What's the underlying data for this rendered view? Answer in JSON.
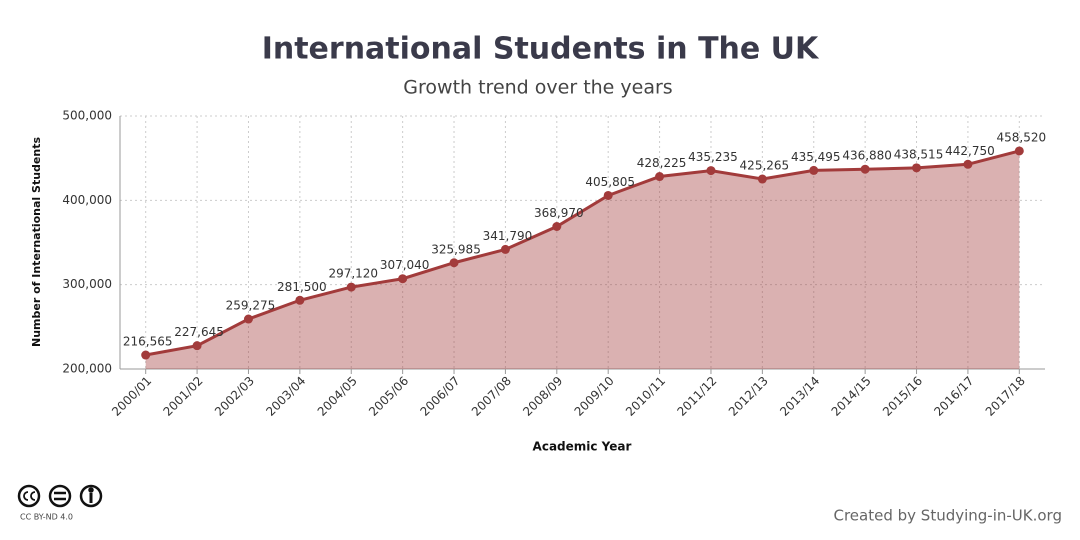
{
  "chart_data": {
    "type": "area-line",
    "title": "International Students in The UK",
    "subtitle": "Growth trend over the years",
    "x_label": "Academic Year",
    "y_label": "Number of International Students",
    "categories": [
      "2000/01",
      "2001/02",
      "2002/03",
      "2003/04",
      "2004/05",
      "2005/06",
      "2006/07",
      "2007/08",
      "2008/09",
      "2009/10",
      "2010/11",
      "2011/12",
      "2012/13",
      "2013/14",
      "2014/15",
      "2015/16",
      "2016/17",
      "2017/18"
    ],
    "values": [
      216565,
      227645,
      259275,
      281500,
      297120,
      307040,
      325985,
      341790,
      368970,
      405805,
      428225,
      435235,
      425265,
      435495,
      436880,
      438515,
      442750,
      458520
    ],
    "value_labels": [
      "216,565",
      "227,645",
      "259,275",
      "281,500",
      "297,120",
      "307,040",
      "325,985",
      "341,790",
      "368,970",
      "405,805",
      "428,225",
      "435,235",
      "425,265",
      "435,495",
      "436,880",
      "438,515",
      "442,750",
      "458,520"
    ],
    "color": "#a23b3b",
    "ylim": [
      200000,
      500000
    ],
    "yticks": [
      {
        "value": 200000,
        "label": "200,000"
      },
      {
        "value": 300000,
        "label": "300,000"
      },
      {
        "value": 400000,
        "label": "400,000"
      },
      {
        "value": 500000,
        "label": "500,000"
      }
    ],
    "grid": true,
    "credit": "Created by Studying-in-UK.org",
    "license": "CC BY-ND 4.0"
  }
}
